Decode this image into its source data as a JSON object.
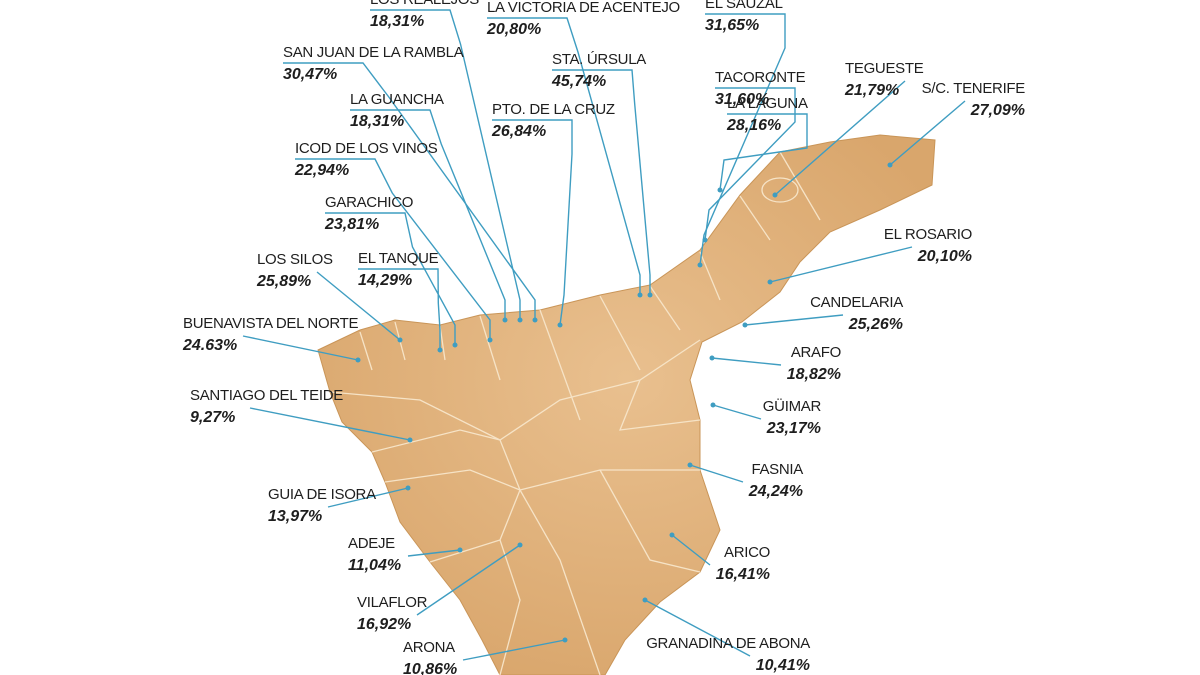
{
  "labels": [
    {
      "name": "LOS REALEJOS",
      "value": "18,31%"
    },
    {
      "name": "LA VICTORIA DE ACENTEJO",
      "value": "20,80%"
    },
    {
      "name": "EL SAUZAL",
      "value": "31,65%"
    },
    {
      "name": "SAN JUAN DE LA RAMBLA",
      "value": "30,47%"
    },
    {
      "name": "STA. ÚRSULA",
      "value": "45,74%"
    },
    {
      "name": "TACORONTE",
      "value": "31,60%"
    },
    {
      "name": "TEGUESTE",
      "value": "21,79%"
    },
    {
      "name": "S/C. TENERIFE",
      "value": "27,09%"
    },
    {
      "name": "LA GUANCHA",
      "value": "18,31%"
    },
    {
      "name": "PTO. DE LA CRUZ",
      "value": "26,84%"
    },
    {
      "name": "LA LAGUNA",
      "value": "28,16%"
    },
    {
      "name": "ICOD DE LOS VINOS",
      "value": "22,94%"
    },
    {
      "name": "GARACHICO",
      "value": "23,81%"
    },
    {
      "name": "EL ROSARIO",
      "value": "20,10%"
    },
    {
      "name": "LOS SILOS",
      "value": "25,89%"
    },
    {
      "name": "EL TANQUE",
      "value": "14,29%"
    },
    {
      "name": "CANDELARIA",
      "value": "25,26%"
    },
    {
      "name": "BUENAVISTA DEL NORTE",
      "value": "24.63%"
    },
    {
      "name": "ARAFO",
      "value": "18,82%"
    },
    {
      "name": "SANTIAGO DEL TEIDE",
      "value": "9,27%"
    },
    {
      "name": "GÜIMAR",
      "value": "23,17%"
    },
    {
      "name": "FASNIA",
      "value": "24,24%"
    },
    {
      "name": "GUIA DE ISORA",
      "value": "13,97%"
    },
    {
      "name": "ADEJE",
      "value": "11,04%"
    },
    {
      "name": "ARICO",
      "value": "16,41%"
    },
    {
      "name": "VILAFLOR",
      "value": "16,92%"
    },
    {
      "name": "GRANADINA DE ABONA",
      "value": "10,41%"
    },
    {
      "name": "ARONA",
      "value": "10,86%"
    }
  ]
}
